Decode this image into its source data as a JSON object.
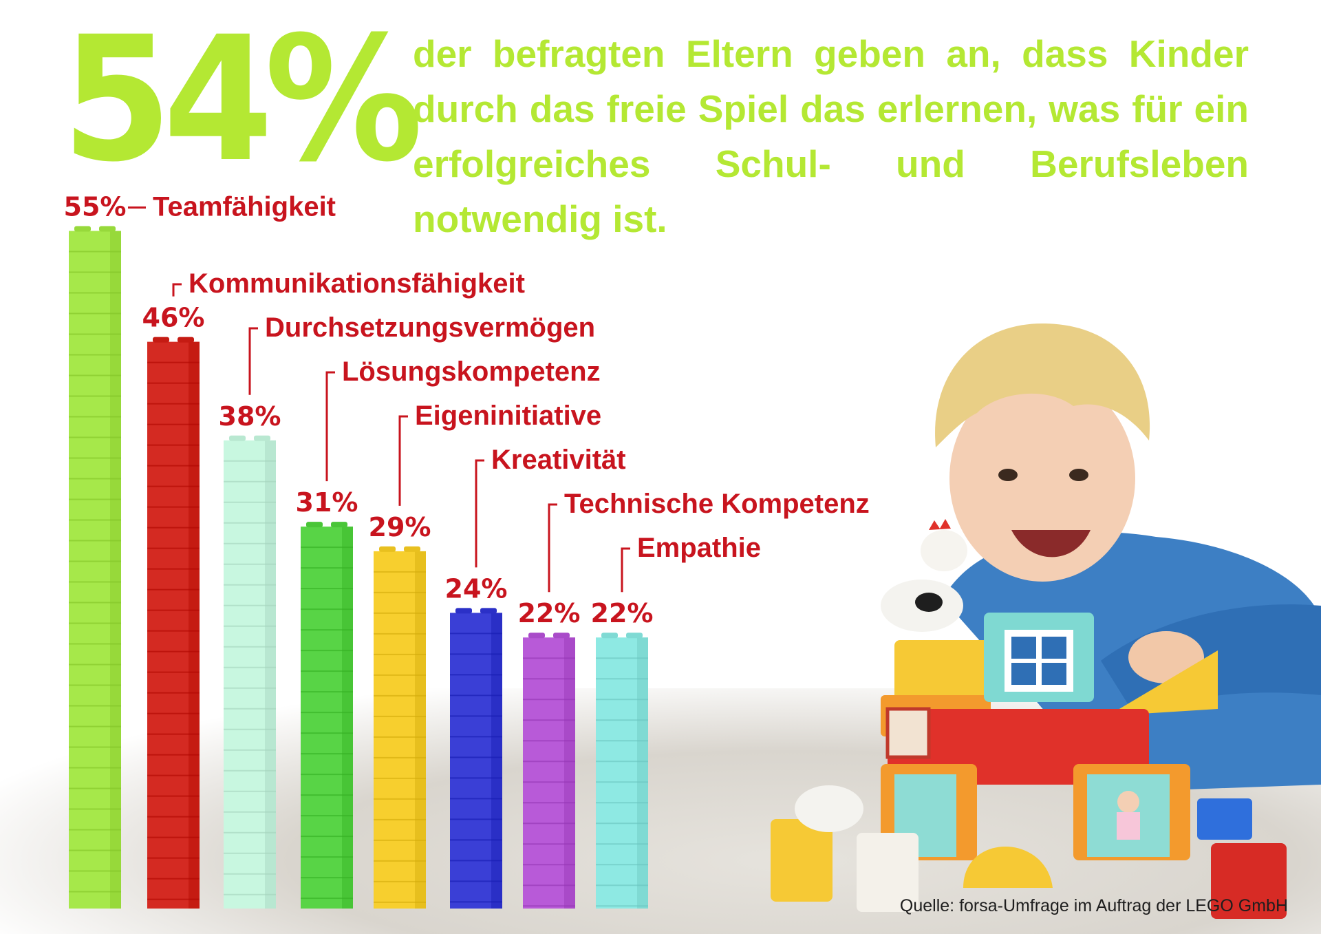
{
  "headline": {
    "percent": "54%",
    "text": "der befragten Eltern geben an, dass Kinder durch das freie Spiel das erlernen, was für ein erfolgreiches Schul- und Berufsleben notwendig ist."
  },
  "colors": {
    "headline": "#b4e833",
    "label_red": "#c8141e",
    "bars": [
      "#a6e84a",
      "#d42a22",
      "#c8f7e0",
      "#58d446",
      "#f7cf2e",
      "#3a3fd6",
      "#b85ad8",
      "#8ee9e3"
    ]
  },
  "chart_data": {
    "type": "bar",
    "title": "",
    "xlabel": "",
    "ylabel": "",
    "ylim": [
      0,
      55
    ],
    "grid": false,
    "legend": "none",
    "categories": [
      "Teamfähigkeit",
      "Kommunikationsfähigkeit",
      "Durchsetzungsvermögen",
      "Lösungskompetenz",
      "Eigeninitiative",
      "Kreativität",
      "Technische Kompetenz",
      "Empathie"
    ],
    "values": [
      55,
      46,
      38,
      31,
      29,
      24,
      22,
      22
    ],
    "value_labels": [
      "55%",
      "46%",
      "38%",
      "31%",
      "29%",
      "24%",
      "22%",
      "22%"
    ]
  },
  "source": "Quelle: forsa-Umfrage im Auftrag der LEGO GmbH"
}
